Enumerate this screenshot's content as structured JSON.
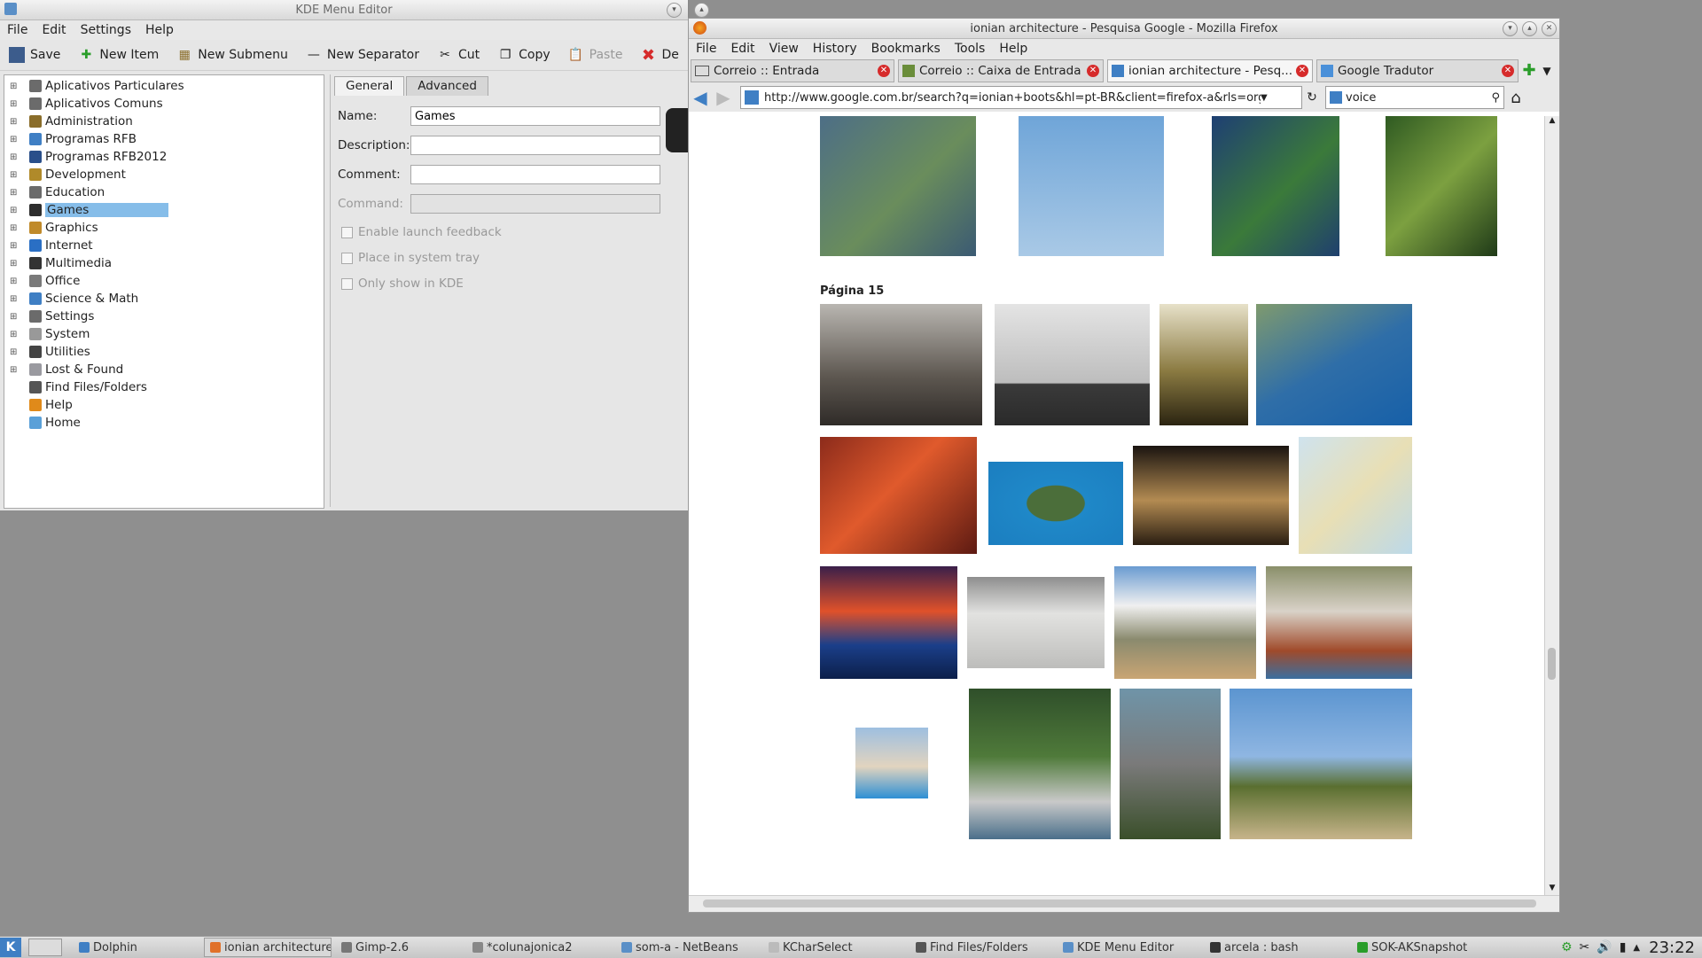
{
  "kde": {
    "title": "KDE Menu Editor",
    "menu": [
      "File",
      "Edit",
      "Settings",
      "Help"
    ],
    "toolbar": {
      "save": "Save",
      "new_item": "New Item",
      "new_submenu": "New Submenu",
      "new_separator": "New Separator",
      "cut": "Cut",
      "copy": "Copy",
      "paste": "Paste",
      "delete": "De"
    },
    "tree": [
      "Aplicativos Particulares",
      "Aplicativos Comuns",
      "Administration",
      "Programas RFB",
      "Programas RFB2012",
      "Development",
      "Education",
      "Games",
      "Graphics",
      "Internet",
      "Multimedia",
      "Office",
      "Science & Math",
      "Settings",
      "System",
      "Utilities",
      "Lost & Found",
      "Find Files/Folders",
      "Help",
      "Home"
    ],
    "tabs": [
      "General",
      "Advanced"
    ],
    "form": {
      "name_label": "Name:",
      "name_value": "Games",
      "description_label": "Description:",
      "comment_label": "Comment:",
      "command_label": "Command:"
    },
    "checks": [
      "Enable launch feedback",
      "Place in system tray",
      "Only show in KDE"
    ]
  },
  "firefox": {
    "title": "ionian architecture - Pesquisa Google - Mozilla Firefox",
    "menu": [
      "File",
      "Edit",
      "View",
      "History",
      "Bookmarks",
      "Tools",
      "Help"
    ],
    "tabs": [
      "Correio :: Entrada",
      "Correio :: Caixa de Entrada",
      "ionian architecture - Pesq...",
      "Google Tradutor"
    ],
    "url": "http://www.google.com.br/search?q=ionian+boots&hl=pt-BR&client=firefox-a&rls=org",
    "search": "voice",
    "page_heading": "Página 15"
  },
  "taskbar": {
    "items": [
      "Dolphin",
      "ionian architecture",
      "Gimp-2.6",
      "*colunajonica2",
      "som-a - NetBeans",
      "KCharSelect",
      "Find Files/Folders",
      "KDE Menu Editor",
      "arcela : bash",
      "SOK-AKSnapshot"
    ],
    "clock": "23:22"
  },
  "colors": {
    "selection": "#86bde9",
    "tab_close": "#d62b2b",
    "accent": "#3f7fc4"
  }
}
